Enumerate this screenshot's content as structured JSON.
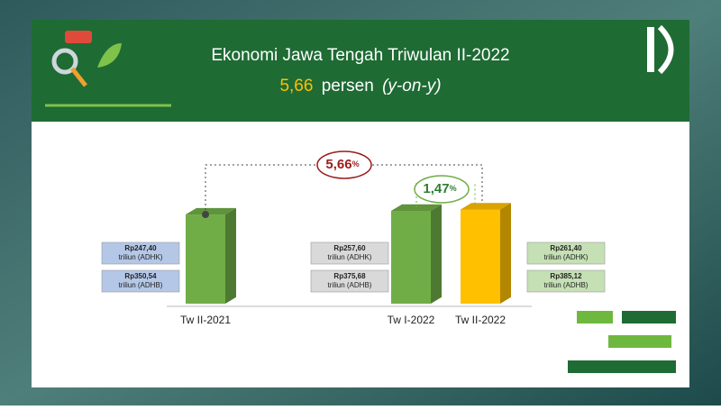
{
  "chart_data": {
    "type": "bar",
    "title": "Ekonomi Jawa Tengah Triwulan II-2022",
    "subtitle": {
      "value": "5,66",
      "text": "persen",
      "note": "(y-on-y)"
    },
    "categories": [
      "Tw II-2021",
      "Tw I-2022",
      "Tw II-2022"
    ],
    "colors": [
      "#70ad47",
      "#70ad47",
      "#ffc000"
    ],
    "series": [
      {
        "values": [
          247.4,
          257.6,
          261.4
        ],
        "value_labels": [
          "Rp247,40 triliun (ADHK)",
          "Rp257,60 triliun (ADHK)",
          "Rp261,40 triliun (ADHK)"
        ]
      },
      {
        "values": [
          350.54,
          375.68,
          385.12
        ],
        "value_labels": [
          "Rp350,54 triliun (ADHB)",
          "Rp375,68 triliun (ADHB)",
          "Rp385,12 triliun (ADHB)"
        ]
      }
    ],
    "box_colors": [
      "#b4c7e7",
      "#d9d9d9",
      "#c5e0b4"
    ],
    "annotations": [
      {
        "value": "5,66",
        "unit": "%"
      },
      {
        "value": "1,47",
        "unit": "%"
      }
    ]
  }
}
